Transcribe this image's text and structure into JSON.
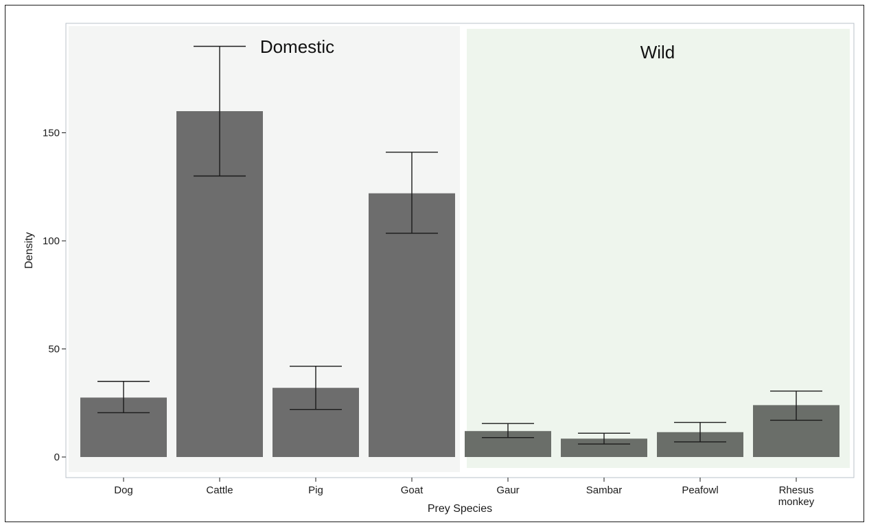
{
  "chart_data": {
    "type": "bar",
    "xlabel": "Prey Species",
    "ylabel": "Density",
    "ylim": [
      0,
      195
    ],
    "yticks": [
      0,
      50,
      100,
      150
    ],
    "grid": false,
    "groups": [
      {
        "label": "Domestic",
        "color": "#f4f5f4",
        "categories": [
          "Dog",
          "Cattle",
          "Pig",
          "Goat"
        ]
      },
      {
        "label": "Wild",
        "color": "#eef5ed",
        "categories": [
          "Gaur",
          "Sambar",
          "Peafowl",
          "Rhesus monkey"
        ]
      }
    ],
    "categories": [
      "Dog",
      "Cattle",
      "Pig",
      "Goat",
      "Gaur",
      "Sambar",
      "Peafowl",
      "Rhesus monkey"
    ],
    "values": [
      27.5,
      160,
      32,
      122,
      12,
      8.5,
      11.5,
      24
    ],
    "error_low": [
      20.5,
      130,
      22,
      103.5,
      9,
      6,
      7,
      17
    ],
    "error_high": [
      35,
      190,
      42,
      141,
      15.5,
      11,
      16,
      30.5
    ],
    "bar_colors": [
      "#6d6d6d",
      "#6d6d6d",
      "#6d6d6d",
      "#6d6d6d",
      "#6a6e69",
      "#6a6e69",
      "#6a6e69",
      "#6a6e69"
    ]
  }
}
